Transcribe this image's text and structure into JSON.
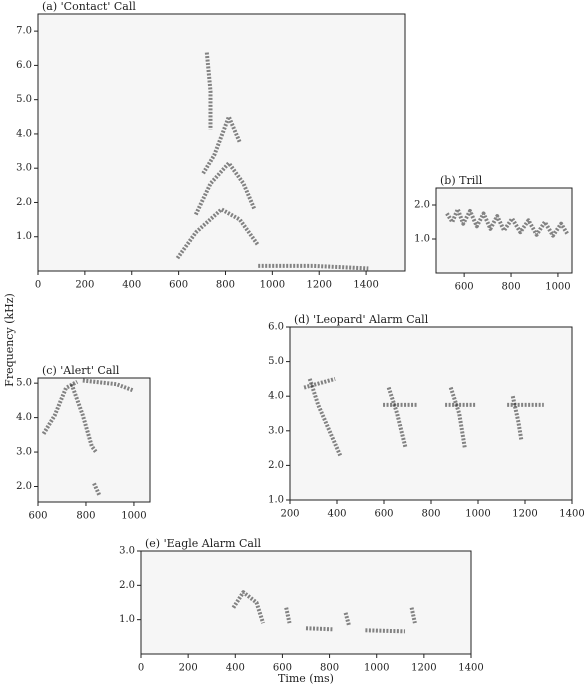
{
  "chart_data": [
    {
      "type": "spectrogram",
      "title": "(a) 'Contact' Call",
      "xlim": [
        0,
        1566
      ],
      "xticks": [
        0,
        200,
        400,
        600,
        800,
        1000,
        1200,
        1400
      ],
      "ylim": [
        0,
        7.5
      ],
      "yticks": [
        {
          "value": 1,
          "label": "1.0"
        },
        {
          "value": 2,
          "label": "2.0"
        },
        {
          "value": 3,
          "label": "3.0"
        },
        {
          "value": 4,
          "label": "4.0"
        },
        {
          "value": 5,
          "label": "5.0"
        },
        {
          "value": 6,
          "label": "6.0"
        },
        {
          "value": 7,
          "label": "7.0"
        }
      ]
    },
    {
      "type": "spectrogram",
      "title": "(b) Trill",
      "xlim": [
        480,
        1060
      ],
      "xticks": [
        600,
        800,
        1000
      ],
      "ylim": [
        0,
        2.5
      ],
      "yticks": [
        {
          "value": 1,
          "label": "1.0"
        },
        {
          "value": 2,
          "label": "2.0"
        }
      ]
    },
    {
      "type": "spectrogram",
      "title": "(c) 'Alert' Call",
      "xlim": [
        600,
        1067
      ],
      "xticks": [
        600,
        800,
        1000
      ],
      "ylim": [
        1.55,
        5.15
      ],
      "yticks": [
        {
          "value": 2,
          "label": "2.0"
        },
        {
          "value": 3,
          "label": "3.0"
        },
        {
          "value": 4,
          "label": "4.0"
        },
        {
          "value": 5,
          "label": "5.0"
        }
      ]
    },
    {
      "type": "spectrogram",
      "title": "(d) 'Leopard' Alarm Call",
      "xlim": [
        200,
        1400
      ],
      "xticks": [
        200,
        400,
        600,
        800,
        1000,
        1200,
        1400
      ],
      "ylim": [
        1,
        6
      ],
      "yticks": [
        {
          "value": 1,
          "label": "1.0"
        },
        {
          "value": 2,
          "label": "2.0"
        },
        {
          "value": 3,
          "label": "3.0"
        },
        {
          "value": 4,
          "label": "4.0"
        },
        {
          "value": 5,
          "label": "5.0"
        },
        {
          "value": 6,
          "label": "6.0"
        }
      ]
    },
    {
      "type": "spectrogram",
      "title": "(e) 'Eagle Alarm Call",
      "xlim": [
        0,
        1400
      ],
      "xticks": [
        0,
        200,
        400,
        600,
        800,
        1000,
        1200,
        1400
      ],
      "ylim": [
        0,
        3
      ],
      "yticks": [
        {
          "value": 1,
          "label": "1.0"
        },
        {
          "value": 2,
          "label": "2.0"
        },
        {
          "value": 3,
          "label": "3.0"
        }
      ]
    }
  ],
  "y_axis_label": "Frequency (kHz)",
  "x_axis_label": "Time (ms)"
}
